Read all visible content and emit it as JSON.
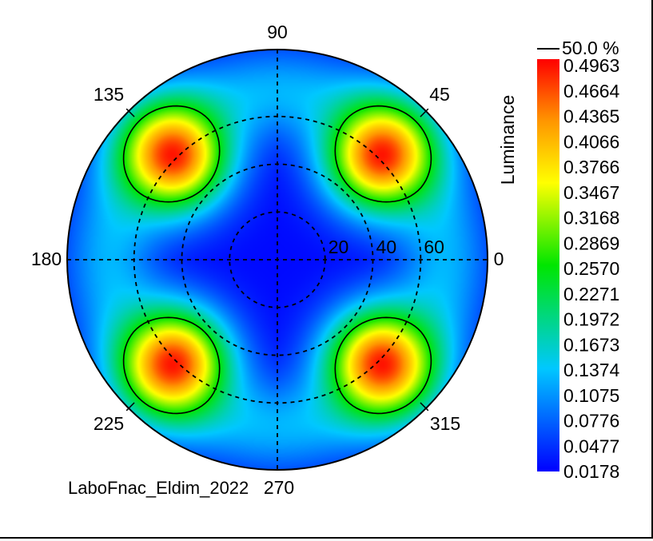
{
  "chart_data": {
    "type": "heatmap",
    "subtype": "polar-conoscopic",
    "title": "",
    "footer_label": "LaboFnac_Eldim_2022",
    "colorbar": {
      "title": "Luminance",
      "contour_label": "50.0 %",
      "min": 0.0178,
      "max": 0.4963,
      "ticks": [
        "0.4963",
        "0.4664",
        "0.4365",
        "0.4066",
        "0.3766",
        "0.3467",
        "0.3168",
        "0.2869",
        "0.2570",
        "0.2271",
        "0.1972",
        "0.1673",
        "0.1374",
        "0.1075",
        "0.0776",
        "0.0477",
        "0.0178"
      ]
    },
    "azimuth_labels": [
      {
        "angle": 0,
        "text": "0"
      },
      {
        "angle": 45,
        "text": "45"
      },
      {
        "angle": 90,
        "text": "90"
      },
      {
        "angle": 135,
        "text": "135"
      },
      {
        "angle": 180,
        "text": "180"
      },
      {
        "angle": 225,
        "text": "225"
      },
      {
        "angle": 270,
        "text": "270"
      },
      {
        "angle": 315,
        "text": "315"
      }
    ],
    "radial_labels": [
      {
        "theta": 20,
        "text": "20"
      },
      {
        "theta": 40,
        "text": "40"
      },
      {
        "theta": 60,
        "text": "60"
      }
    ],
    "theta_max": 88,
    "peaks": [
      {
        "azimuth": 45,
        "theta": 62,
        "value": 0.4963
      },
      {
        "azimuth": 135,
        "theta": 62,
        "value": 0.4963
      },
      {
        "azimuth": 225,
        "theta": 62,
        "value": 0.4963
      },
      {
        "azimuth": 315,
        "theta": 62,
        "value": 0.4963
      }
    ],
    "minimum": {
      "azimuth": 0,
      "theta": 0,
      "value": 0.0178
    },
    "contour_level_fraction": 0.5,
    "grid": true
  }
}
